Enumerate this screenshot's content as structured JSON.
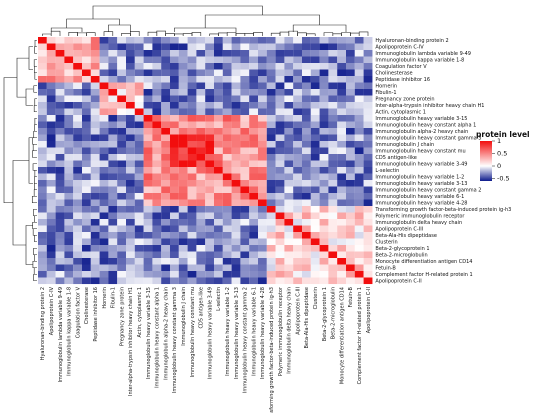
{
  "chart_data": {
    "type": "heatmap",
    "title": "",
    "legend": {
      "title": "protein level",
      "ticks": [
        1,
        0.5,
        0,
        -0.5
      ],
      "range": [
        -0.6,
        1
      ],
      "colors": {
        "low": "#0d1a8c",
        "mid": "#ffffff",
        "high": "#f20d0d"
      },
      "placement": "right"
    },
    "proteins": [
      "Hyaluronan-binding protein 2",
      "Apolipoprotein C-IV",
      "Immunoglobulin lambda variable 9-49",
      "Immunoglobulin kappa variable 1-8",
      "Coagulation factor V",
      "Cholinesterase",
      "Peptidase inhibitor 16",
      "Hornerin",
      "Fibulin-1",
      "Pregnancy zone protein",
      "Inter-alpha-trypsin inhibitor heavy chain H1",
      "Actin, cytoplasmic 1",
      "Immunoglobulin heavy variable 3-15",
      "Immunoglobulin heavy constant alpha 1",
      "Immunoglobulin alpha-2 heavy chain",
      "Immunoglobulin heavy constant gamma 3",
      "Immunoglobulin J chain",
      "Immunoglobulin heavy constant mu",
      "CD5 antigen-like",
      "Immunoglobulin heavy variable 3-49",
      "L-selectin",
      "Immunoglobulin heavy variable 1-2",
      "Immunoglobulin heavy variable 3-13",
      "Immunoglobulin heavy constant gamma 2",
      "Immunoglobulin heavy variable 6-1",
      "Immunoglobulin heavy variable 4-28",
      "Transforming growth factor-beta-induced protein ig-h3",
      "Polymeric immunoglobulin receptor",
      "Immunoglobulin delta heavy chain",
      "Apolipoprotein C-III",
      "Beta-Ala-His dipeptidase",
      "Clusterin",
      "Beta-2-glycoprotein 1",
      "Beta-2-microglobulin",
      "Monocyte differentiation antigen CD14",
      "Fetuin-B",
      "Complement factor H-related protein 1",
      "Apolipoprotein C-II"
    ],
    "column_labels": [
      "Hyaluronan-binding protein 2",
      "Apolipoprotein C-IV",
      "Immunoglobulin lambda variable 9-49",
      "Immunoglobulin kappa variable 1-8",
      "Coagulation factor V",
      "Cholinesterase",
      "Peptidase inhibitor 16",
      "Hornerin",
      "Fibulin-1",
      "Pregnancy zone protein",
      "Inter-alpha-trypsin inhibitor heavy chain H1",
      "Actin, cytoplasmic 1",
      "Immunoglobulin heavy variable 3-15",
      "Immunoglobulin heavy constant alpha 1",
      "Immunoglobulin alpha-2 heavy chain",
      "Immunoglobulin heavy constant gamma 3",
      "Immunoglobulin J chain",
      "Immunoglobulin heavy constant mu",
      "CD5 antigen-like",
      "Immunoglobulin heavy variable 3-49",
      "L-selectin",
      "Immunoglobulin heavy variable 1-2",
      "Immunoglobulin heavy variable 3-13",
      "Immunoglobulin heavy constant gamma 2",
      "Immunoglobulin heavy variable 6-1",
      "Immunoglobulin heavy variable 4-28",
      "nsforming growth factor-beta-induced protein ig-h3",
      "Polymeric immunoglobulin receptor",
      "Immunoglobulin delta heavy chain",
      "Apolipoprotein C-III",
      "Beta-Ala-His dipeptidase",
      "Clusterin",
      "Beta-2-glycoprotein 1",
      "Beta-2-microglobulin",
      "Monocyte differentiation antigen CD14",
      "Fetuin-B",
      "Complement factor H-related protein 1",
      "Apolipoprotein C-II"
    ],
    "blocks": [
      {
        "rows": [
          0,
          6
        ],
        "cols": [
          0,
          6
        ],
        "value": 0.35
      },
      {
        "rows": [
          7,
          11
        ],
        "cols": [
          7,
          11
        ],
        "value": 0.2
      },
      {
        "rows": [
          12,
          25
        ],
        "cols": [
          12,
          25
        ],
        "value": 0.45
      },
      {
        "rows": [
          15,
          19
        ],
        "cols": [
          15,
          19
        ],
        "value": 0.85
      },
      {
        "rows": [
          26,
          37
        ],
        "cols": [
          26,
          37
        ],
        "value": 0.15
      }
    ],
    "background_value": -0.3,
    "diagonal_value": 1
  }
}
